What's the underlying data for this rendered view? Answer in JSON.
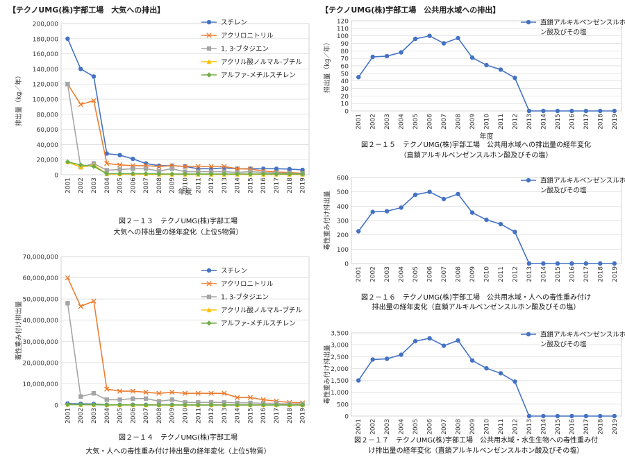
{
  "sections": {
    "air": "【テクノUMG(株)宇部工場　大気への排出】",
    "water": "【テクノUMG(株)宇部工場　公共用水域への排出】"
  },
  "years": [
    "2001",
    "2002",
    "2003",
    "2004",
    "2005",
    "2006",
    "2007",
    "2008",
    "2009",
    "2010",
    "2011",
    "2012",
    "2013",
    "2014",
    "2015",
    "2016",
    "2017",
    "2018",
    "2019"
  ],
  "chart_data": [
    {
      "id": "c1",
      "type": "line",
      "ylabel": "排出量（kg／年）",
      "xlabel": "年度",
      "ylim": [
        0,
        200000
      ],
      "ytick_step": 20000,
      "yticks_format": "comma",
      "caption": [
        "図２－１３　テクノUMG(株)宇部工場",
        "大気への排出量の経年変化（上位5物質）"
      ],
      "legend_position": "top-right",
      "series": [
        {
          "name": "スチレン",
          "color": "#4472C4",
          "marker": "circle",
          "values": [
            180000,
            140000,
            130000,
            28000,
            26000,
            21000,
            15000,
            12000,
            12000,
            11000,
            8000,
            8000,
            9000,
            8000,
            8000,
            8000,
            8000,
            7500,
            6500
          ]
        },
        {
          "name": "アクリロニトリル",
          "color": "#ED7D31",
          "marker": "x",
          "values": [
            120000,
            93000,
            98000,
            15000,
            13000,
            12000,
            12000,
            11000,
            12000,
            11000,
            11000,
            11000,
            11000,
            8000,
            7500,
            5000,
            3500,
            3000,
            2000
          ]
        },
        {
          "name": "1, 3-ブタジエン",
          "color": "#A5A5A5",
          "marker": "square",
          "values": [
            120000,
            10000,
            15000,
            6000,
            7000,
            8000,
            8000,
            5000,
            8000,
            4000,
            4000,
            4000,
            4000,
            3000,
            4000,
            3000,
            2500,
            2000,
            1500
          ]
        },
        {
          "name": "アクリル酸ノルマル-ブチル",
          "color": "#FFC000",
          "marker": "triangle",
          "values": [
            17000,
            10000,
            13000,
            1000,
            1000,
            1000,
            1000,
            500,
            500,
            500,
            500,
            500,
            500,
            500,
            500,
            500,
            500,
            500,
            500
          ]
        },
        {
          "name": "アルファ-メチルスチレン",
          "color": "#70AD47",
          "marker": "diamond",
          "values": [
            17000,
            13000,
            11000,
            1500,
            1500,
            1500,
            1500,
            1000,
            1000,
            1000,
            1000,
            1000,
            1000,
            1000,
            1000,
            1000,
            1000,
            1000,
            1000
          ]
        }
      ]
    },
    {
      "id": "c2",
      "type": "line",
      "ylabel": "毒性重み付け排出量",
      "xlabel": "",
      "ylim": [
        0,
        70000000
      ],
      "ytick_step": 10000000,
      "yticks_format": "comma",
      "caption": [
        "図２－１４　テクノUMG(株)宇部工場",
        "大気・人への毒性重み付け排出量の経年変化（上位5物質）"
      ],
      "legend_position": "top-right",
      "series": [
        {
          "name": "スチレン",
          "color": "#4472C4",
          "marker": "circle",
          "values": [
            700000,
            550000,
            500000,
            100000,
            90000,
            80000,
            60000,
            50000,
            50000,
            40000,
            30000,
            30000,
            30000,
            30000,
            30000,
            30000,
            30000,
            30000,
            30000
          ]
        },
        {
          "name": "アクリロニトリル",
          "color": "#ED7D31",
          "marker": "x",
          "values": [
            60000000,
            46500000,
            49000000,
            7500000,
            6500000,
            6500000,
            6000000,
            5500000,
            6000000,
            5500000,
            5500000,
            5500000,
            5500000,
            3500000,
            3500000,
            2500000,
            1800000,
            1200000,
            1000000
          ]
        },
        {
          "name": "1, 3-ブタジエン",
          "color": "#A5A5A5",
          "marker": "square",
          "values": [
            48000000,
            4000000,
            5500000,
            2500000,
            2500000,
            3000000,
            3000000,
            1800000,
            2500000,
            1200000,
            1200000,
            1200000,
            1200000,
            1000000,
            1000000,
            800000,
            800000,
            500000,
            400000
          ]
        },
        {
          "name": "アクリル酸ノルマル-ブチル",
          "color": "#FFC000",
          "marker": "triangle",
          "values": [
            300000,
            150000,
            200000,
            20000,
            20000,
            20000,
            20000,
            10000,
            10000,
            10000,
            10000,
            10000,
            10000,
            10000,
            10000,
            10000,
            10000,
            10000,
            10000
          ]
        },
        {
          "name": "アルファ-メチルスチレン",
          "color": "#70AD47",
          "marker": "diamond",
          "values": [
            200000,
            150000,
            120000,
            20000,
            20000,
            20000,
            20000,
            10000,
            10000,
            10000,
            10000,
            10000,
            10000,
            10000,
            10000,
            10000,
            10000,
            10000,
            10000
          ]
        }
      ]
    },
    {
      "id": "c3",
      "type": "line",
      "ylabel": "排出量（kg／年）",
      "xlabel": "年度",
      "ylim": [
        0,
        120
      ],
      "ytick_step": 10,
      "yticks_format": "plain",
      "caption": [
        "図２－１５　テクノUMG(株)宇部工場　公共用水域への排出量の経年変化",
        "（直鎖アルキルベンゼンスルホン酸及びその塩）"
      ],
      "legend_position": "top-right",
      "series": [
        {
          "name": "直鎖アルキルベンゼンスルホン酸及びその塩",
          "color": "#4472C4",
          "marker": "circle",
          "values": [
            45,
            72,
            73,
            78,
            96,
            100,
            90,
            97,
            71,
            61,
            55,
            44,
            0,
            0,
            0,
            0,
            0,
            0,
            0
          ]
        }
      ]
    },
    {
      "id": "c4",
      "type": "line",
      "ylabel": "毒性重み付け排出量",
      "xlabel": "",
      "ylim": [
        0,
        600
      ],
      "ytick_step": 100,
      "yticks_format": "plain",
      "caption": [
        "図２－１６　テクノUMG(株)宇部工場　公共用水域・人への毒性重み付け",
        "排出量の経年変化（直鎖アルキルベンゼンスルホン酸及びその塩）"
      ],
      "legend_position": "top-right",
      "series": [
        {
          "name": "直鎖アルキルベンゼンスルホン酸及びその塩",
          "color": "#4472C4",
          "marker": "circle",
          "values": [
            225,
            360,
            365,
            390,
            480,
            500,
            450,
            485,
            355,
            305,
            275,
            220,
            0,
            0,
            0,
            0,
            0,
            0,
            0
          ]
        }
      ]
    },
    {
      "id": "c5",
      "type": "line",
      "ylabel": "毒性重み付け排出量",
      "xlabel": "",
      "ylim": [
        0,
        3500
      ],
      "ytick_step": 500,
      "yticks_format": "comma",
      "caption": [
        "図２－１７　テクノUMG(株)宇部工場　公共用水域・水生生物への毒性重み付",
        "け排出量の経年変化（直鎖アルキルベンゼンスルホン酸及びその塩）"
      ],
      "legend_position": "top-right",
      "series": [
        {
          "name": "直鎖アルキルベンゼンスルホン酸及びその塩",
          "color": "#4472C4",
          "marker": "circle",
          "values": [
            1500,
            2380,
            2410,
            2580,
            3150,
            3270,
            2960,
            3180,
            2340,
            2010,
            1800,
            1450,
            0,
            0,
            0,
            0,
            0,
            0,
            0
          ]
        }
      ]
    }
  ]
}
